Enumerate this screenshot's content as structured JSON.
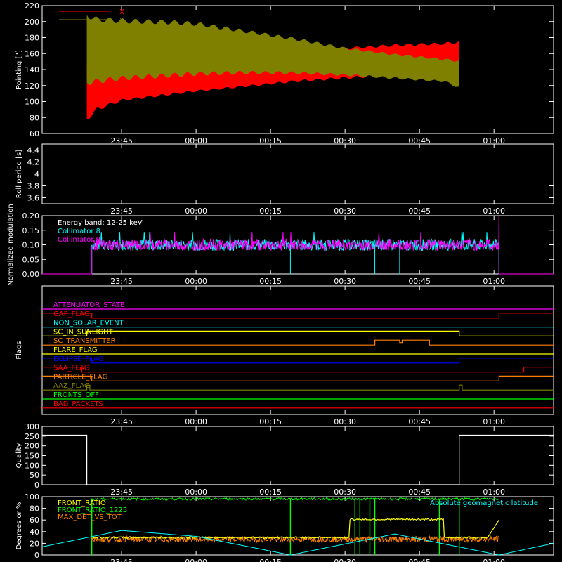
{
  "x_ticks": [
    "23:45",
    "00:00",
    "00:15",
    "00:30",
    "00:45",
    "01:00"
  ],
  "chart_data": [
    {
      "type": "area",
      "name": "pointing",
      "ylabel": "Pointing [\"]",
      "ylim": [
        60,
        220
      ],
      "yticks": [
        60,
        80,
        100,
        120,
        140,
        160,
        180,
        200,
        220
      ],
      "xlim": [
        "23:29",
        "01:12"
      ],
      "reference_line": 128,
      "legend": {
        "placement": "top-left",
        "entries": [
          {
            "label": "X",
            "color": "#ff0000"
          },
          {
            "label": "Y",
            "color": "#808000"
          }
        ]
      },
      "series": [
        {
          "name": "X",
          "color": "#ff0000",
          "x": [
            "23:38",
            "23:40",
            "23:45",
            "23:50",
            "23:55",
            "00:00",
            "00:10",
            "00:20",
            "00:30",
            "00:40",
            "00:50",
            "00:53"
          ],
          "low": [
            75,
            88,
            100,
            104,
            108,
            112,
            118,
            124,
            128,
            132,
            136,
            138
          ],
          "high": [
            148,
            142,
            140,
            140,
            141,
            142,
            146,
            160,
            168,
            172,
            174,
            176
          ]
        },
        {
          "name": "Y",
          "color": "#808000",
          "x": [
            "23:38",
            "23:40",
            "23:45",
            "23:50",
            "23:55",
            "00:00",
            "00:10",
            "00:20",
            "00:30",
            "00:40",
            "00:50",
            "00:53"
          ],
          "low": [
            120,
            122,
            126,
            128,
            130,
            132,
            134,
            134,
            132,
            128,
            124,
            116
          ],
          "high": [
            212,
            206,
            204,
            203,
            202,
            200,
            190,
            180,
            168,
            160,
            154,
            152
          ]
        }
      ]
    },
    {
      "type": "line",
      "name": "roll-period",
      "ylabel": "Roll period [s]",
      "ylim": [
        3.5,
        4.5
      ],
      "yticks": [
        3.6,
        3.8,
        4.0,
        4.2,
        4.4
      ],
      "series": [
        {
          "name": "roll",
          "color": "#ffffff",
          "x": [
            "23:29",
            "01:12"
          ],
          "values": [
            4.0,
            4.0
          ]
        }
      ]
    },
    {
      "type": "line",
      "name": "modulation",
      "ylabel": "Normalized modulation",
      "ylim": [
        0,
        0.2
      ],
      "yticks": [
        0.0,
        0.05,
        0.1,
        0.15,
        0.2
      ],
      "ytick_labels": [
        "0.00",
        "0.05",
        "0.10",
        "0.15",
        "0.20"
      ],
      "legend": {
        "placement": "top-left",
        "entries": [
          {
            "label": "Energy band: 12-25 keV",
            "color": "#ffffff"
          },
          {
            "label": "Collimator 8",
            "color": "#00ffff"
          },
          {
            "label": "Collimator 9",
            "color": "#ff00ff"
          }
        ]
      },
      "active_span": [
        "23:39",
        "01:01"
      ],
      "level": 0.1,
      "jitter": 0.02,
      "spike_max": 0.2,
      "dropouts_c8": [
        "00:19",
        "00:36",
        "00:41"
      ]
    },
    {
      "type": "line",
      "name": "flags",
      "ylabel": "Flags",
      "flags": [
        {
          "label": "ATTENUATOR_STATE",
          "color": "#ff00ff",
          "steps": []
        },
        {
          "label": "GAP_FLAG",
          "color": "#ff0000",
          "steps": [
            [
              "23:29",
              1
            ],
            [
              "23:39",
              0
            ],
            [
              "01:01",
              1
            ]
          ]
        },
        {
          "label": "NON_SOLAR_EVENT",
          "color": "#00ffff",
          "steps": []
        },
        {
          "label": "SC_IN_SUNLIGHT",
          "color": "#ffff00",
          "steps": [
            [
              "23:29",
              0
            ],
            [
              "23:38",
              1
            ],
            [
              "00:53",
              0
            ]
          ]
        },
        {
          "label": "SC_TRANSMITTER",
          "color": "#ff8000",
          "steps": [
            [
              "23:29",
              0
            ],
            [
              "00:36",
              1
            ],
            [
              "00:41",
              0.5
            ],
            [
              "00:41.5",
              1
            ],
            [
              "00:47",
              0
            ]
          ]
        },
        {
          "label": "FLARE_FLAG",
          "color": "#ffff00",
          "steps": []
        },
        {
          "label": "ECLIPSE_FLAG",
          "color": "#0000ff",
          "steps": [
            [
              "23:29",
              1
            ],
            [
              "23:39",
              0
            ],
            [
              "00:53",
              1
            ]
          ]
        },
        {
          "label": "SAA_FLAG",
          "color": "#ff0000",
          "steps": [
            [
              "23:29",
              1
            ],
            [
              "23:37",
              0
            ],
            [
              "01:06",
              1
            ]
          ]
        },
        {
          "label": "PARTICLE_FLAG",
          "color": "#ff8000",
          "steps": [
            [
              "23:29",
              1
            ],
            [
              "23:39",
              0
            ],
            [
              "01:01",
              1
            ]
          ]
        },
        {
          "label": "AAZ_FLAG",
          "color": "#808000",
          "steps": [
            [
              "23:29",
              0
            ],
            [
              "23:38",
              1
            ],
            [
              "23:38.6",
              0
            ],
            [
              "00:53",
              1
            ],
            [
              "00:53.6",
              0
            ]
          ]
        },
        {
          "label": "FRONTS_OFF",
          "color": "#00ff00",
          "steps": []
        },
        {
          "label": "BAD_PACKETS",
          "color": "#ff0000",
          "steps": []
        }
      ]
    },
    {
      "type": "line",
      "name": "quality",
      "ylabel": "Quality",
      "ylim": [
        0,
        300
      ],
      "yticks": [
        0,
        50,
        100,
        150,
        200,
        250,
        300
      ],
      "series": [
        {
          "name": "quality",
          "color": "#ffffff",
          "steps": [
            [
              "23:29",
              255
            ],
            [
              "23:38",
              0
            ],
            [
              "00:53",
              255
            ],
            [
              "01:12",
              255
            ]
          ]
        }
      ]
    },
    {
      "type": "line",
      "name": "ratios",
      "ylabel": "Degrees or %",
      "ylim": [
        0,
        100
      ],
      "yticks": [
        0,
        20,
        40,
        60,
        80,
        100
      ],
      "legend": {
        "placement": "top-left",
        "entries": [
          {
            "label": "FRONT_RATIO",
            "color": "#ffff00"
          },
          {
            "label": "FRONT_RATIO_1225",
            "color": "#00ff00"
          },
          {
            "label": "MAX_DET_VS_TOT",
            "color": "#ff8000"
          }
        ]
      },
      "annotation": {
        "text": "Absolute geomagnetic latitude",
        "color": "#00ffff",
        "placement": "top-right"
      },
      "front_ratio_1225_level": 96,
      "front_ratio_levels": [
        {
          "from": "23:39",
          "to": "00:31",
          "value": 30
        },
        {
          "from": "00:31",
          "to": "00:50",
          "value": 61
        },
        {
          "from": "00:50",
          "to": "00:59",
          "value": 30
        }
      ],
      "front_ratio_end": [
        "01:01",
        60
      ],
      "max_det_level": 27,
      "green_spikes": [
        "00:19",
        "00:32",
        "00:33",
        "00:35",
        "00:36",
        "00:49",
        "00:53"
      ],
      "latitude": {
        "x": [
          "23:29",
          "23:45",
          "00:00",
          "00:19",
          "00:40",
          "01:01",
          "01:12"
        ],
        "values": [
          14,
          42,
          32,
          0,
          36,
          0,
          20
        ]
      }
    }
  ]
}
